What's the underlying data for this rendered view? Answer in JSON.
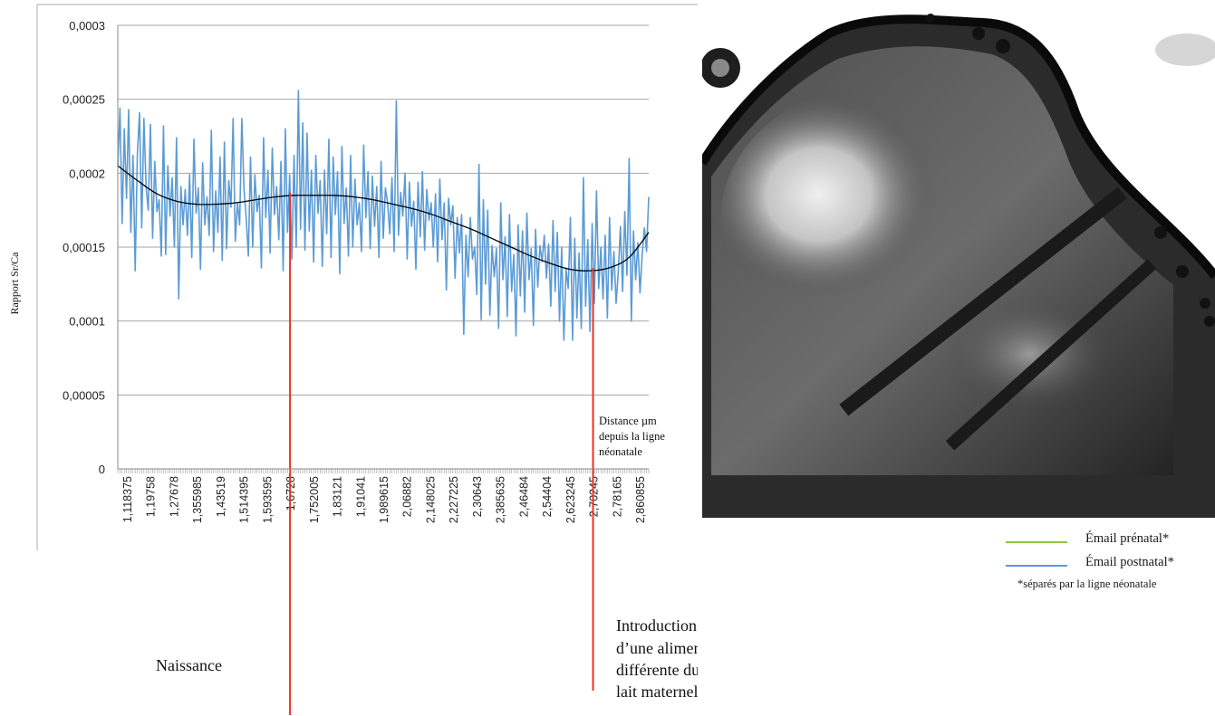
{
  "chart_data": {
    "type": "line",
    "title": "",
    "ylabel": "Rapport Sr/Ca",
    "xlabel": "Distance µm depuis la ligne néonatale",
    "xlabel_lines": [
      "Distance µm",
      "depuis la ligne",
      "néonatale"
    ],
    "ylim": [
      0,
      0.0003
    ],
    "yticks": [
      0,
      5e-05,
      0.0001,
      0.00015,
      0.0002,
      0.00025,
      0.0003
    ],
    "ytick_labels": [
      "0",
      "0,00005",
      "0,0001",
      "0,00015",
      "0,0002",
      "0,00025",
      "0,0003"
    ],
    "xlim": [
      1.118375,
      2.91
    ],
    "x_tick_labels": [
      "1,118375",
      "1,19758",
      "1,27678",
      "1,355985",
      "1,43519",
      "1,514395",
      "1,593595",
      "1,6728",
      "1,752005",
      "1,83121",
      "1,91041",
      "1,989615",
      "2,06882",
      "2,148025",
      "2,227225",
      "2,30643",
      "2,385635",
      "2,46484",
      "2,54404",
      "2,623245",
      "2,70245",
      "2,78165",
      "2,860855"
    ],
    "grid": "horizontal",
    "series": [
      {
        "kind": "raw",
        "color": "#5b9bd5",
        "values": [
          0.000205,
          0.000244,
          0.000166,
          0.00023,
          0.000183,
          0.000243,
          0.00016,
          0.000212,
          0.000134,
          0.000213,
          0.000241,
          0.000163,
          0.000237,
          0.000191,
          0.000175,
          0.000233,
          0.000156,
          0.000208,
          0.000174,
          0.000182,
          0.000144,
          0.000232,
          0.000145,
          0.000205,
          0.000171,
          0.000197,
          0.00015,
          0.000224,
          0.000115,
          0.000191,
          0.000165,
          0.000189,
          0.000158,
          0.000199,
          0.000143,
          0.000223,
          0.000173,
          0.00019,
          0.000135,
          0.000207,
          0.000165,
          0.000184,
          0.000158,
          0.000229,
          0.000147,
          0.000188,
          0.00016,
          0.000211,
          0.000141,
          0.000221,
          0.000149,
          0.000195,
          0.000177,
          0.000237,
          0.000154,
          0.00018,
          0.000165,
          0.000237,
          0.000189,
          0.00017,
          0.000144,
          0.000211,
          0.00015,
          0.000199,
          0.000174,
          0.000185,
          0.000136,
          0.000224,
          0.00017,
          0.000202,
          0.000146,
          0.000217,
          0.000172,
          0.000191,
          0.000155,
          0.000208,
          0.000134,
          0.00023,
          0.00016,
          0.000199,
          0.000142,
          0.000212,
          0.00015,
          0.000256,
          0.000162,
          0.000234,
          0.000148,
          0.000227,
          0.000161,
          0.000202,
          0.00014,
          0.000212,
          0.000173,
          0.000195,
          0.000137,
          0.000202,
          0.000159,
          0.000223,
          0.000143,
          0.000211,
          0.000172,
          0.000201,
          0.000132,
          0.000218,
          0.000166,
          0.00019,
          0.000144,
          0.000212,
          0.00015,
          0.000196,
          0.000165,
          0.00018,
          0.000147,
          0.000219,
          0.00017,
          0.000201,
          0.000149,
          0.000198,
          0.000164,
          0.000191,
          0.000143,
          0.000208,
          0.000156,
          0.00019,
          0.00018,
          0.000159,
          0.000197,
          0.000147,
          0.000249,
          0.000158,
          0.000187,
          0.000171,
          0.0002,
          0.000142,
          0.000194,
          0.000164,
          0.000181,
          0.000135,
          0.000194,
          0.000157,
          0.000201,
          0.000148,
          0.000189,
          0.000168,
          0.00018,
          0.00015,
          0.000186,
          0.00014,
          0.000196,
          0.000155,
          0.00018,
          0.000121,
          0.000183,
          0.000165,
          0.000178,
          0.000129,
          0.00017,
          0.000146,
          0.000172,
          9.1e-05,
          0.000158,
          0.00013,
          0.00017,
          0.000142,
          0.00015,
          0.000118,
          0.000206,
          0.000101,
          0.000182,
          0.000125,
          0.000175,
          0.000104,
          0.000151,
          0.00013,
          0.000149,
          9.5e-05,
          0.00018,
          0.000128,
          0.000157,
          0.000103,
          0.000172,
          0.00012,
          0.000145,
          9e-05,
          0.000165,
          0.000117,
          0.000161,
          0.000106,
          0.000173,
          0.000128,
          0.000149,
          9.7e-05,
          0.000162,
          0.000123,
          0.000151,
          0.00014,
          0.000158,
          0.000129,
          0.000152,
          0.00011,
          0.000168,
          0.00012,
          0.00016,
          0.0001,
          0.00015,
          8.7e-05,
          0.000135,
          0.000122,
          0.00017,
          8.7e-05,
          0.000156,
          0.000102,
          0.000146,
          9.5e-05,
          0.000197,
          0.00011,
          0.000155,
          9.3e-05,
          0.000166,
          0.000112,
          0.000188,
          0.000122,
          0.00015,
          0.000115,
          0.000158,
          0.000102,
          0.00017,
          0.000121,
          0.000147,
          0.000112,
          0.000133,
          0.000164,
          0.00012,
          0.000174,
          0.000131,
          0.00021,
          0.0001,
          0.000161,
          0.000128,
          0.000153,
          0.000119,
          0.000145,
          0.000163,
          0.000147,
          0.000184
        ]
      },
      {
        "kind": "trend",
        "color": "#000000",
        "values": [
          0.000205,
          0.000195,
          0.000186,
          0.000181,
          0.000179,
          0.000179,
          0.00018,
          0.000182,
          0.000184,
          0.000185,
          0.000185,
          0.000185,
          0.000184,
          0.000182,
          0.000179,
          0.000176,
          0.000172,
          0.000167,
          0.000162,
          0.000156,
          0.00015,
          0.000144,
          0.000139,
          0.000135,
          0.000134,
          0.000136,
          0.000143,
          0.00016
        ]
      }
    ],
    "annotations": [
      {
        "label": "Naissance",
        "at_x_tick_index": 7,
        "y_value": 0.000187,
        "color": "#ee3124"
      },
      {
        "label_lines": [
          "Introduction",
          "d’une alimention",
          "différente du",
          "lait maternel"
        ],
        "at_x_tick_index": 20,
        "y_value": 0.000136,
        "color": "#ee3124"
      }
    ]
  },
  "legend": {
    "items": [
      {
        "label": "Émail prénatal*",
        "color": "#8dc63f"
      },
      {
        "label": "Émail postnatal*",
        "color": "#5b9bd5"
      }
    ],
    "note": "*séparés par la ligne néonatale"
  }
}
